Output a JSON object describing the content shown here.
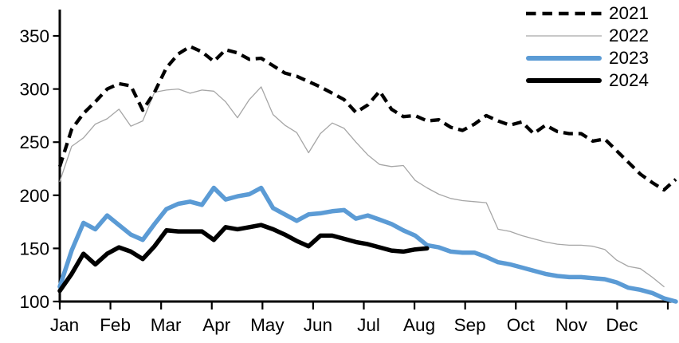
{
  "chart_data": {
    "type": "line",
    "title": "",
    "x_axis": {
      "tick_labels": [
        "Jan",
        "Feb",
        "Mar",
        "Apr",
        "May",
        "Jun",
        "Jul",
        "Aug",
        "Sep",
        "Oct",
        "Nov",
        "Dec"
      ],
      "unit": "weekly-points-per-year"
    },
    "y_axis": {
      "min": 100,
      "max": 350,
      "ticks": [
        100,
        150,
        200,
        250,
        300,
        350
      ]
    },
    "legend": {
      "position": "top-right",
      "entries": [
        "2021",
        "2022",
        "2023",
        "2024"
      ]
    },
    "grid": "off",
    "series": [
      {
        "name": "2021",
        "color": "#000000",
        "style": "dashed",
        "stroke_width": 4.3,
        "values": [
          227,
          262,
          277,
          288,
          300,
          305,
          303,
          280,
          297,
          320,
          333,
          340,
          335,
          326,
          337,
          334,
          328,
          329,
          322,
          315,
          312,
          307,
          302,
          296,
          290,
          278,
          285,
          298,
          281,
          274,
          275,
          270,
          271,
          264,
          261,
          267,
          275,
          270,
          266,
          269,
          258,
          266,
          260,
          258,
          258,
          251,
          253,
          242,
          231,
          220,
          212,
          205,
          215
        ]
      },
      {
        "name": "2022",
        "color": "#a6a6a6",
        "style": "solid",
        "stroke_width": 1.3,
        "values": [
          213,
          246,
          254,
          267,
          272,
          281,
          265,
          270,
          297,
          299,
          300,
          296,
          299,
          298,
          288,
          273,
          290,
          302,
          276,
          266,
          259,
          240,
          258,
          268,
          263,
          250,
          238,
          229,
          227,
          228,
          214,
          207,
          201,
          197,
          195,
          194,
          193,
          168,
          166,
          162,
          159,
          156,
          154,
          153,
          153,
          152,
          149,
          139,
          133,
          131,
          123,
          114
        ]
      },
      {
        "name": "2023",
        "color": "#5b9bd5",
        "style": "solid",
        "stroke_width": 5.5,
        "values": [
          114,
          148,
          174,
          168,
          181,
          172,
          163,
          158,
          173,
          187,
          192,
          194,
          191,
          207,
          196,
          199,
          201,
          207,
          188,
          182,
          176,
          182,
          183,
          185,
          186,
          178,
          181,
          177,
          173,
          167,
          162,
          153,
          151,
          147,
          146,
          146,
          142,
          137,
          135,
          132,
          129,
          126,
          124,
          123,
          123,
          122,
          121,
          118,
          113,
          111,
          108,
          103,
          100
        ]
      },
      {
        "name": "2024",
        "color": "#000000",
        "style": "solid",
        "stroke_width": 5.5,
        "values": [
          110,
          126,
          145,
          135,
          145,
          151,
          147,
          140,
          152,
          167,
          166,
          166,
          166,
          158,
          170,
          168,
          170,
          172,
          168,
          163,
          157,
          152,
          162,
          162,
          159,
          156,
          154,
          151,
          148,
          147,
          149,
          150
        ]
      }
    ]
  }
}
